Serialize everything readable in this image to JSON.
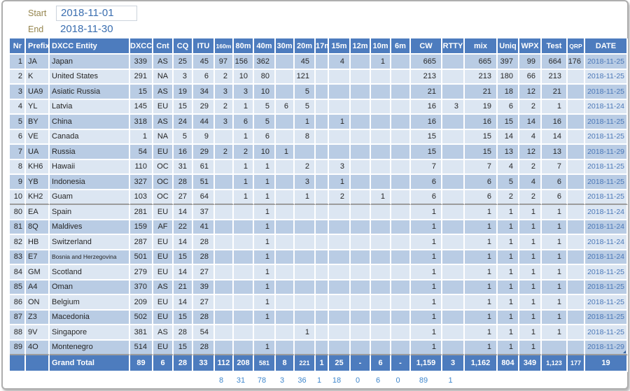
{
  "filters": {
    "start_label": "Start",
    "start_value": "2018-11-01",
    "end_label": "End",
    "end_value": "2018-11-30"
  },
  "table": {
    "columns": [
      {
        "key": "nr",
        "label": "Nr"
      },
      {
        "key": "prefix",
        "label": "Prefix"
      },
      {
        "key": "entity",
        "label": "DXCC Entity"
      },
      {
        "key": "dxcc",
        "label": "DXCC"
      },
      {
        "key": "cnt",
        "label": "Cnt"
      },
      {
        "key": "cq",
        "label": "CQ"
      },
      {
        "key": "itu",
        "label": "ITU"
      },
      {
        "key": "160m",
        "label": "160m"
      },
      {
        "key": "80m",
        "label": "80m"
      },
      {
        "key": "40m",
        "label": "40m"
      },
      {
        "key": "30m",
        "label": "30m"
      },
      {
        "key": "20m",
        "label": "20m"
      },
      {
        "key": "17m",
        "label": "17m"
      },
      {
        "key": "15m",
        "label": "15m"
      },
      {
        "key": "12m",
        "label": "12m"
      },
      {
        "key": "10m",
        "label": "10m"
      },
      {
        "key": "6m",
        "label": "6m"
      },
      {
        "key": "cw",
        "label": "CW"
      },
      {
        "key": "rtty",
        "label": "RTTY"
      },
      {
        "key": "mix",
        "label": "mix"
      },
      {
        "key": "uniq",
        "label": "Uniq"
      },
      {
        "key": "wpx",
        "label": "WPX"
      },
      {
        "key": "test",
        "label": "Test"
      },
      {
        "key": "qrp",
        "label": "QRP"
      },
      {
        "key": "date",
        "label": "DATE"
      }
    ],
    "header_shrink_cols": [
      7,
      23
    ],
    "rows": [
      [
        1,
        "JA",
        "Japan",
        339,
        "AS",
        25,
        45,
        97,
        156,
        362,
        "",
        45,
        "",
        4,
        "",
        1,
        "",
        665,
        "",
        665,
        397,
        99,
        664,
        176,
        "2018-11-25"
      ],
      [
        2,
        "K",
        "United States",
        291,
        "NA",
        3,
        6,
        2,
        10,
        80,
        "",
        121,
        "",
        "",
        "",
        "",
        "",
        213,
        "",
        213,
        180,
        66,
        213,
        "",
        "2018-11-25"
      ],
      [
        3,
        "UA9",
        "Asiatic Russia",
        15,
        "AS",
        19,
        34,
        3,
        3,
        10,
        "",
        5,
        "",
        "",
        "",
        "",
        "",
        21,
        "",
        21,
        18,
        12,
        21,
        "",
        "2018-11-25"
      ],
      [
        4,
        "YL",
        "Latvia",
        145,
        "EU",
        15,
        29,
        2,
        1,
        5,
        6,
        5,
        "",
        "",
        "",
        "",
        "",
        16,
        3,
        19,
        6,
        2,
        1,
        "",
        "2018-11-24"
      ],
      [
        5,
        "BY",
        "China",
        318,
        "AS",
        24,
        44,
        3,
        6,
        5,
        "",
        1,
        "",
        1,
        "",
        "",
        "",
        16,
        "",
        16,
        15,
        14,
        16,
        "",
        "2018-11-25"
      ],
      [
        6,
        "VE",
        "Canada",
        1,
        "NA",
        5,
        9,
        "",
        1,
        6,
        "",
        8,
        "",
        "",
        "",
        "",
        "",
        15,
        "",
        15,
        14,
        4,
        14,
        "",
        "2018-11-25"
      ],
      [
        7,
        "UA",
        "Russia",
        54,
        "EU",
        16,
        29,
        2,
        2,
        10,
        1,
        "",
        "",
        "",
        "",
        "",
        "",
        15,
        "",
        15,
        13,
        12,
        13,
        "",
        "2018-11-29"
      ],
      [
        8,
        "KH6",
        "Hawaii",
        110,
        "OC",
        31,
        61,
        "",
        1,
        1,
        "",
        2,
        "",
        3,
        "",
        "",
        "",
        7,
        "",
        7,
        4,
        2,
        7,
        "",
        "2018-11-25"
      ],
      [
        9,
        "YB",
        "Indonesia",
        327,
        "OC",
        28,
        51,
        "",
        1,
        1,
        "",
        3,
        "",
        1,
        "",
        "",
        "",
        6,
        "",
        6,
        5,
        4,
        6,
        "",
        "2018-11-25"
      ],
      [
        10,
        "KH2",
        "Guam",
        103,
        "OC",
        27,
        64,
        "",
        1,
        1,
        "",
        1,
        "",
        2,
        "",
        1,
        "",
        6,
        "",
        6,
        2,
        2,
        6,
        "",
        "2018-11-25"
      ],
      [
        80,
        "EA",
        "Spain",
        281,
        "EU",
        14,
        37,
        "",
        "",
        1,
        "",
        "",
        "",
        "",
        "",
        "",
        "",
        1,
        "",
        1,
        1,
        1,
        1,
        "",
        "2018-11-24"
      ],
      [
        81,
        "8Q",
        "Maldives",
        159,
        "AF",
        22,
        41,
        "",
        "",
        1,
        "",
        "",
        "",
        "",
        "",
        "",
        "",
        1,
        "",
        1,
        1,
        1,
        1,
        "",
        "2018-11-24"
      ],
      [
        82,
        "HB",
        "Switzerland",
        287,
        "EU",
        14,
        28,
        "",
        "",
        1,
        "",
        "",
        "",
        "",
        "",
        "",
        "",
        1,
        "",
        1,
        1,
        1,
        1,
        "",
        "2018-11-24"
      ],
      [
        83,
        "E7",
        "Bosnia and Herzegovina",
        501,
        "EU",
        15,
        28,
        "",
        "",
        1,
        "",
        "",
        "",
        "",
        "",
        "",
        "",
        1,
        "",
        1,
        1,
        1,
        1,
        "",
        "2018-11-24"
      ],
      [
        84,
        "GM",
        "Scotland",
        279,
        "EU",
        14,
        27,
        "",
        "",
        1,
        "",
        "",
        "",
        "",
        "",
        "",
        "",
        1,
        "",
        1,
        1,
        1,
        1,
        "",
        "2018-11-25"
      ],
      [
        85,
        "A4",
        "Oman",
        370,
        "AS",
        21,
        39,
        "",
        "",
        1,
        "",
        "",
        "",
        "",
        "",
        "",
        "",
        1,
        "",
        1,
        1,
        1,
        1,
        "",
        "2018-11-25"
      ],
      [
        86,
        "ON",
        "Belgium",
        209,
        "EU",
        14,
        27,
        "",
        "",
        1,
        "",
        "",
        "",
        "",
        "",
        "",
        "",
        1,
        "",
        1,
        1,
        1,
        1,
        "",
        "2018-11-25"
      ],
      [
        87,
        "Z3",
        "Macedonia",
        502,
        "EU",
        15,
        28,
        "",
        "",
        1,
        "",
        "",
        "",
        "",
        "",
        "",
        "",
        1,
        "",
        1,
        1,
        1,
        1,
        "",
        "2018-11-25"
      ],
      [
        88,
        "9V",
        "Singapore",
        381,
        "AS",
        28,
        54,
        "",
        "",
        "",
        "",
        1,
        "",
        "",
        "",
        "",
        "",
        1,
        "",
        1,
        1,
        1,
        1,
        "",
        "2018-11-25"
      ],
      [
        89,
        "4O",
        "Montenegro",
        514,
        "EU",
        15,
        28,
        "",
        "",
        1,
        "",
        "",
        "",
        "",
        "",
        "",
        "",
        1,
        "",
        1,
        1,
        1,
        "",
        "",
        "2018-11-29"
      ]
    ],
    "separator_after_nr": [
      10,
      89
    ],
    "grand_total": {
      "cells": [
        "",
        "",
        "Grand Total",
        "89",
        "6",
        "28",
        "33",
        "112",
        "208",
        "581",
        "8",
        "221",
        "1",
        "25",
        "-",
        "6",
        "-",
        "1,159",
        "3",
        "1,162",
        "804",
        "349",
        "1,123",
        "177",
        "19"
      ],
      "shrink_cells": [
        9,
        11,
        22,
        23
      ]
    },
    "band_sums": {
      "cells": [
        "",
        "",
        "",
        "",
        "",
        "",
        "",
        "8",
        "31",
        "78",
        "3",
        "36",
        "1",
        "18",
        "0",
        "6",
        "0",
        "89",
        "1",
        "",
        "",
        "",
        "",
        "",
        ""
      ]
    }
  },
  "colors": {
    "header_bg": "#4d7cbe",
    "row_dark": "#b9cce4",
    "row_light": "#dce6f2",
    "grid_line": "#ffffff",
    "hidden_row_separator": "#9c9c9c",
    "date_text": "#4a77b8",
    "band_sum_text": "#3f87cd",
    "filter_label": "#95854e",
    "filter_value": "#3a6eb0",
    "total_text": "#ffffff"
  }
}
